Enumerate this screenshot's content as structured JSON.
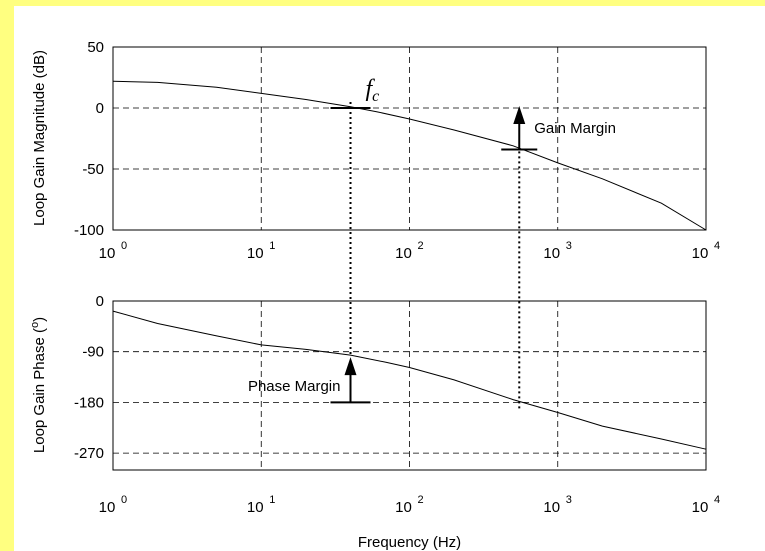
{
  "chart_data": [
    {
      "type": "line",
      "ylabel": "Loop Gain Magnitude (dB)",
      "xlabel": "",
      "xscale": "log",
      "xlim": [
        1,
        10000
      ],
      "ylim": [
        -100,
        50
      ],
      "grid": true,
      "xticks": [
        1,
        10,
        100,
        1000,
        10000
      ],
      "yticks": [
        50,
        0,
        -50,
        -100
      ],
      "series": [
        {
          "x": [
            1,
            2,
            5,
            10,
            20,
            40,
            60,
            100,
            200,
            500,
            1000,
            2000,
            5000,
            10000
          ],
          "y": [
            22,
            21,
            17,
            12,
            7,
            1,
            -3,
            -9,
            -18,
            -31,
            -45,
            -58,
            -78,
            -100
          ]
        }
      ]
    },
    {
      "type": "line",
      "ylabel": "Loop Gain Phase (o)",
      "xlabel": "Frequency (Hz)",
      "xscale": "log",
      "xlim": [
        1,
        10000
      ],
      "ylim": [
        -300,
        0
      ],
      "grid": true,
      "xticks": [
        1,
        10,
        100,
        1000,
        10000
      ],
      "yticks": [
        0,
        -90,
        -180,
        -270
      ],
      "series": [
        {
          "x": [
            1,
            2,
            5,
            10,
            20,
            40,
            70,
            100,
            200,
            500,
            1000,
            2000,
            5000,
            10000
          ],
          "y": [
            -18,
            -40,
            -62,
            -78,
            -86,
            -96,
            -109,
            -118,
            -140,
            -175,
            -198,
            -222,
            -245,
            -263
          ]
        }
      ]
    }
  ],
  "annotations": {
    "fc_symbol": "f",
    "fc_subscript": "c",
    "gain_margin": "Gain Margin",
    "phase_margin": "Phase Margin",
    "fc_freq": 40,
    "gain_margin_freq": 550,
    "gain_margin_db": -34,
    "phase_margin_deg": -180
  }
}
